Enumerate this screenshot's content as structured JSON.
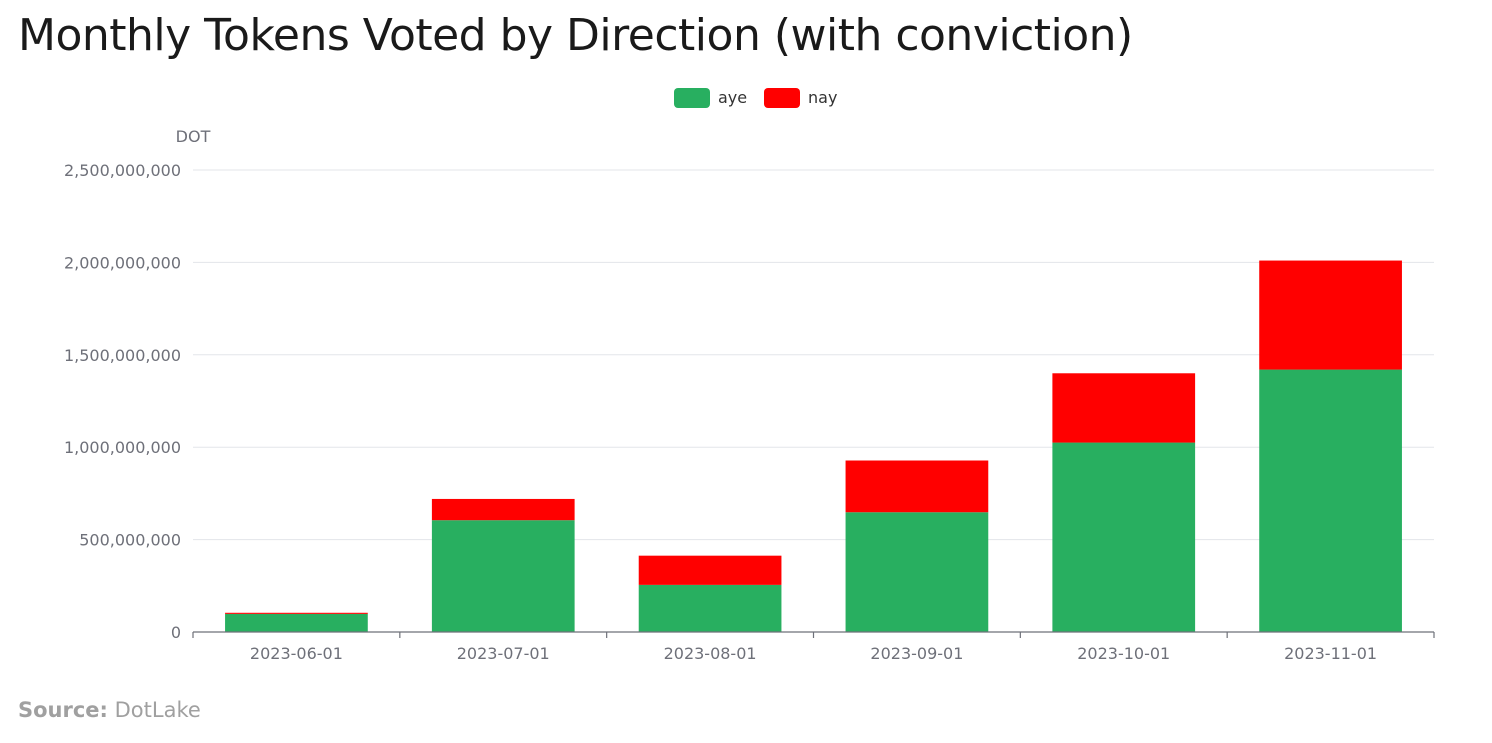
{
  "chart_data": {
    "type": "bar",
    "stacked": true,
    "title": "Monthly Tokens Voted by Direction (with conviction)",
    "ylabel": "DOT",
    "xlabel": "",
    "categories": [
      "2023-06-01",
      "2023-07-01",
      "2023-08-01",
      "2023-09-01",
      "2023-10-01",
      "2023-11-01"
    ],
    "series": [
      {
        "name": "aye",
        "color": "#28af60",
        "values": [
          98000000,
          605000000,
          255000000,
          648000000,
          1025000000,
          1420000000
        ]
      },
      {
        "name": "nay",
        "color": "#ff0000",
        "values": [
          6000000,
          115000000,
          158000000,
          280000000,
          375000000,
          590000000
        ]
      }
    ],
    "ylim": [
      0,
      2500000000
    ],
    "yticks": [
      0,
      500000000,
      1000000000,
      1500000000,
      2000000000,
      2500000000
    ],
    "ytick_labels": [
      "0",
      "500,000,000",
      "1,000,000,000",
      "1,500,000,000",
      "2,000,000,000",
      "2,500,000,000"
    ],
    "grid": true,
    "legend_position": "top-center"
  },
  "source": {
    "label": "Source:",
    "value": "DotLake"
  }
}
